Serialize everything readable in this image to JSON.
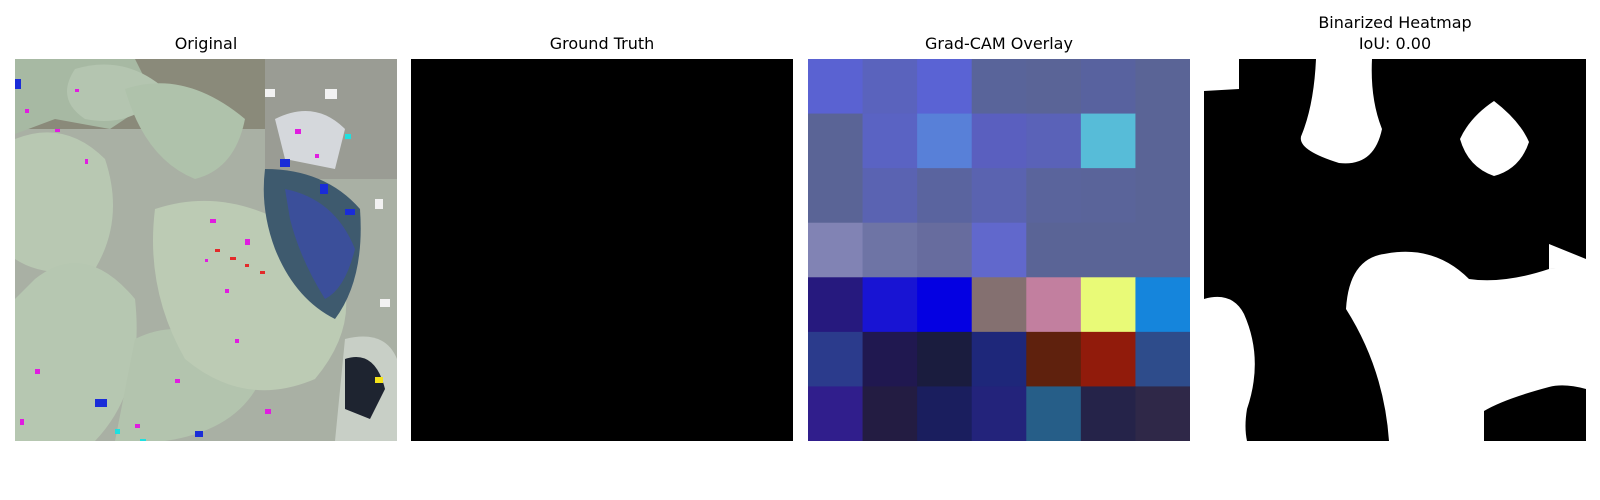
{
  "panels": {
    "original": {
      "title": "Original"
    },
    "ground_truth": {
      "title": "Ground Truth"
    },
    "gradcam": {
      "title": "Grad-CAM Overlay",
      "grid_colors": [
        [
          "#5a62d2",
          "#5a63bd",
          "#5a63d4",
          "#59649a",
          "#5a6497",
          "#58629f",
          "#5a6496"
        ],
        [
          "#5a6496",
          "#5a63c3",
          "#5880d8",
          "#5a5fbf",
          "#5a62b8",
          "#57bcd8",
          "#5a6496"
        ],
        [
          "#5a6496",
          "#5a63b2",
          "#5a649f",
          "#5a63b0",
          "#5a649c",
          "#5a649a",
          "#5a6496"
        ],
        [
          "#8183b4",
          "#6e74a5",
          "#676c9e",
          "#6168cc",
          "#5a6496",
          "#5a6496",
          "#5a6496"
        ],
        [
          "#26197e",
          "#1814d3",
          "#0400e2",
          "#847070",
          "#c27f9f",
          "#e9fa77",
          "#1585dc"
        ],
        [
          "#2b3b8c",
          "#201850",
          "#1a1c3e",
          "#1e277a",
          "#5f210d",
          "#911b0b",
          "#2e4c8b"
        ],
        [
          "#301e8c",
          "#231c42",
          "#1a1e5e",
          "#23237b",
          "#265e88",
          "#252349",
          "#2f2848"
        ]
      ]
    },
    "binarized": {
      "title_line1": "Binarized Heatmap",
      "title_line2": "IoU: 0.00"
    }
  }
}
